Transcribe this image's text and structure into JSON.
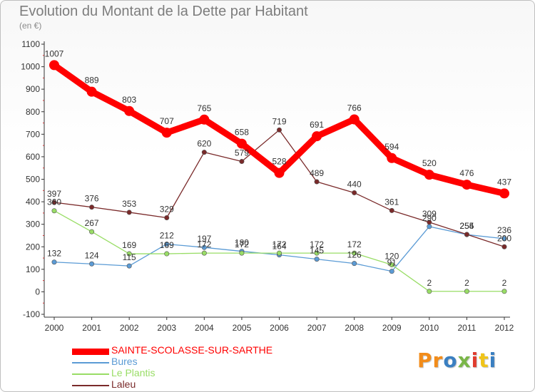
{
  "header": {
    "title": "Evolution du Montant de la Dette par Habitant",
    "subtitle": "(en €)"
  },
  "brand": {
    "text": "Proxiti",
    "colors": [
      "#f28c1a",
      "#f28c1a",
      "#3a7fc1",
      "#7ab648",
      "#e03c2e",
      "#f0c419",
      "#3a7fc1"
    ]
  },
  "chart_data": {
    "type": "line",
    "title": "Evolution du Montant de la Dette par Habitant",
    "subtitle": "(en €)",
    "xlabel": "",
    "ylabel": "",
    "x": [
      2000,
      2001,
      2002,
      2003,
      2004,
      2005,
      2006,
      2007,
      2008,
      2009,
      2010,
      2011,
      2012
    ],
    "ylim": [
      -100,
      1100
    ],
    "yticks": [
      -100,
      0,
      100,
      200,
      300,
      400,
      500,
      600,
      700,
      800,
      900,
      1000,
      1100
    ],
    "grid": false,
    "legend_position": "bottom-left",
    "series": [
      {
        "name": "SAINTE-SCOLASSE-SUR-SARTHE",
        "color": "#ff0000",
        "emphasis": true,
        "values": [
          1007,
          889,
          803,
          707,
          765,
          658,
          528,
          691,
          766,
          594,
          520,
          476,
          437
        ]
      },
      {
        "name": "Bures",
        "color": "#5b9bd5",
        "emphasis": false,
        "values": [
          132,
          124,
          115,
          212,
          197,
          180,
          164,
          145,
          126,
          91,
          290,
          254,
          236
        ]
      },
      {
        "name": "Le Plantis",
        "color": "#99dd66",
        "emphasis": false,
        "values": [
          360,
          267,
          169,
          169,
          172,
          172,
          172,
          172,
          172,
          120,
          2,
          2,
          2
        ]
      },
      {
        "name": "Laleu",
        "color": "#7a2a2a",
        "emphasis": false,
        "values": [
          397,
          376,
          353,
          329,
          620,
          579,
          719,
          489,
          440,
          361,
          309,
          255,
          200
        ]
      }
    ]
  }
}
